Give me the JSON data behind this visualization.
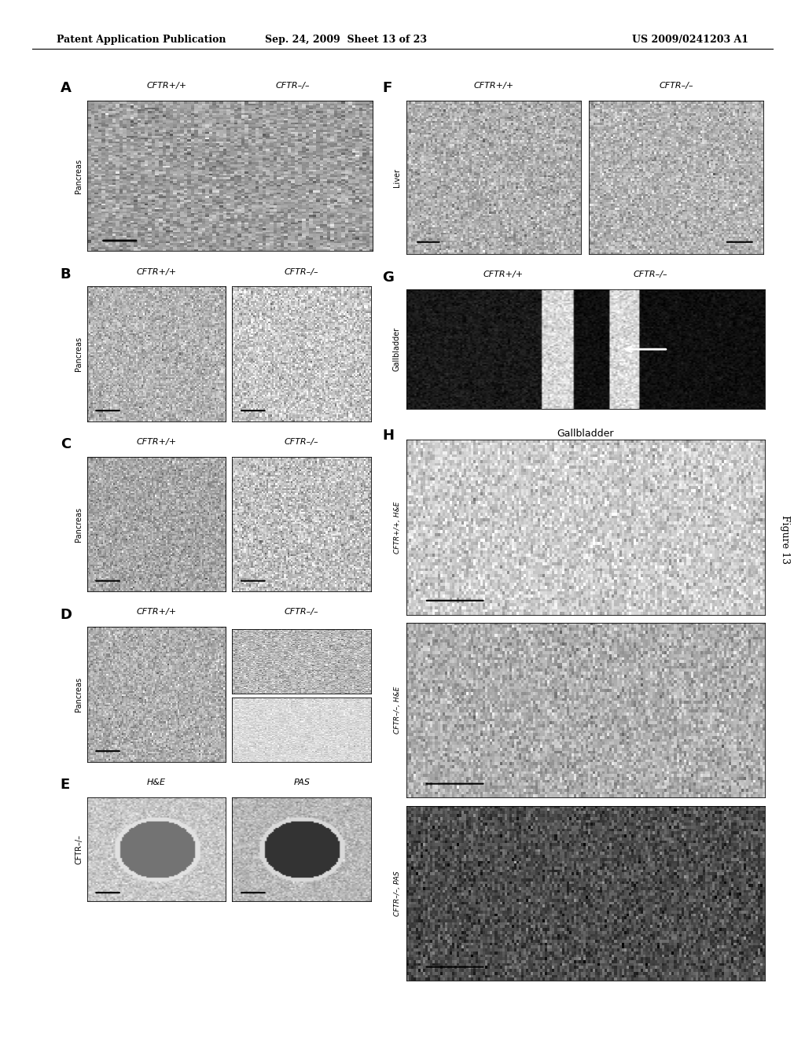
{
  "page_header_left": "Patent Application Publication",
  "page_header_center": "Sep. 24, 2009  Sheet 13 of 23",
  "page_header_right": "US 2009/0241203 A1",
  "figure_label": "Figure 13",
  "bg_color": "#ffffff",
  "header_font_size": 9,
  "panel_label_fontsize": 13,
  "label_fontsize": 8,
  "panels": {
    "A": {
      "label": "A",
      "top_labels": [
        "CFTR+/+",
        "CFTR–/–"
      ],
      "side_label": "Pancreas"
    },
    "B": {
      "label": "B",
      "top_labels": [
        "CFTR+/+",
        "CFTR–/–"
      ],
      "side_label": "Pancreas"
    },
    "C": {
      "label": "C",
      "top_labels": [
        "CFTR+/+",
        "CFTR–/–"
      ],
      "side_label": "Pancreas"
    },
    "D": {
      "label": "D",
      "top_labels": [
        "CFTR+/+",
        "CFTR–/–"
      ],
      "side_label": "Pancreas"
    },
    "E": {
      "label": "E",
      "top_labels": [
        "H&E",
        "PAS"
      ],
      "side_label": "CFTR–/–"
    },
    "F": {
      "label": "F",
      "top_labels": [
        "CFTR+/+",
        "CFTR–/–"
      ],
      "side_label": "Liver"
    },
    "G": {
      "label": "G",
      "top_labels": [
        "CFTR+/+",
        "CFTR–/–"
      ],
      "side_label": "Gallbladder"
    },
    "H": {
      "label": "H",
      "top_label": "Gallbladder",
      "side_labels": [
        "CFTR+/+, H&E",
        "CFTR–/–, H&E",
        "CFTR–/–, PAS"
      ]
    }
  }
}
